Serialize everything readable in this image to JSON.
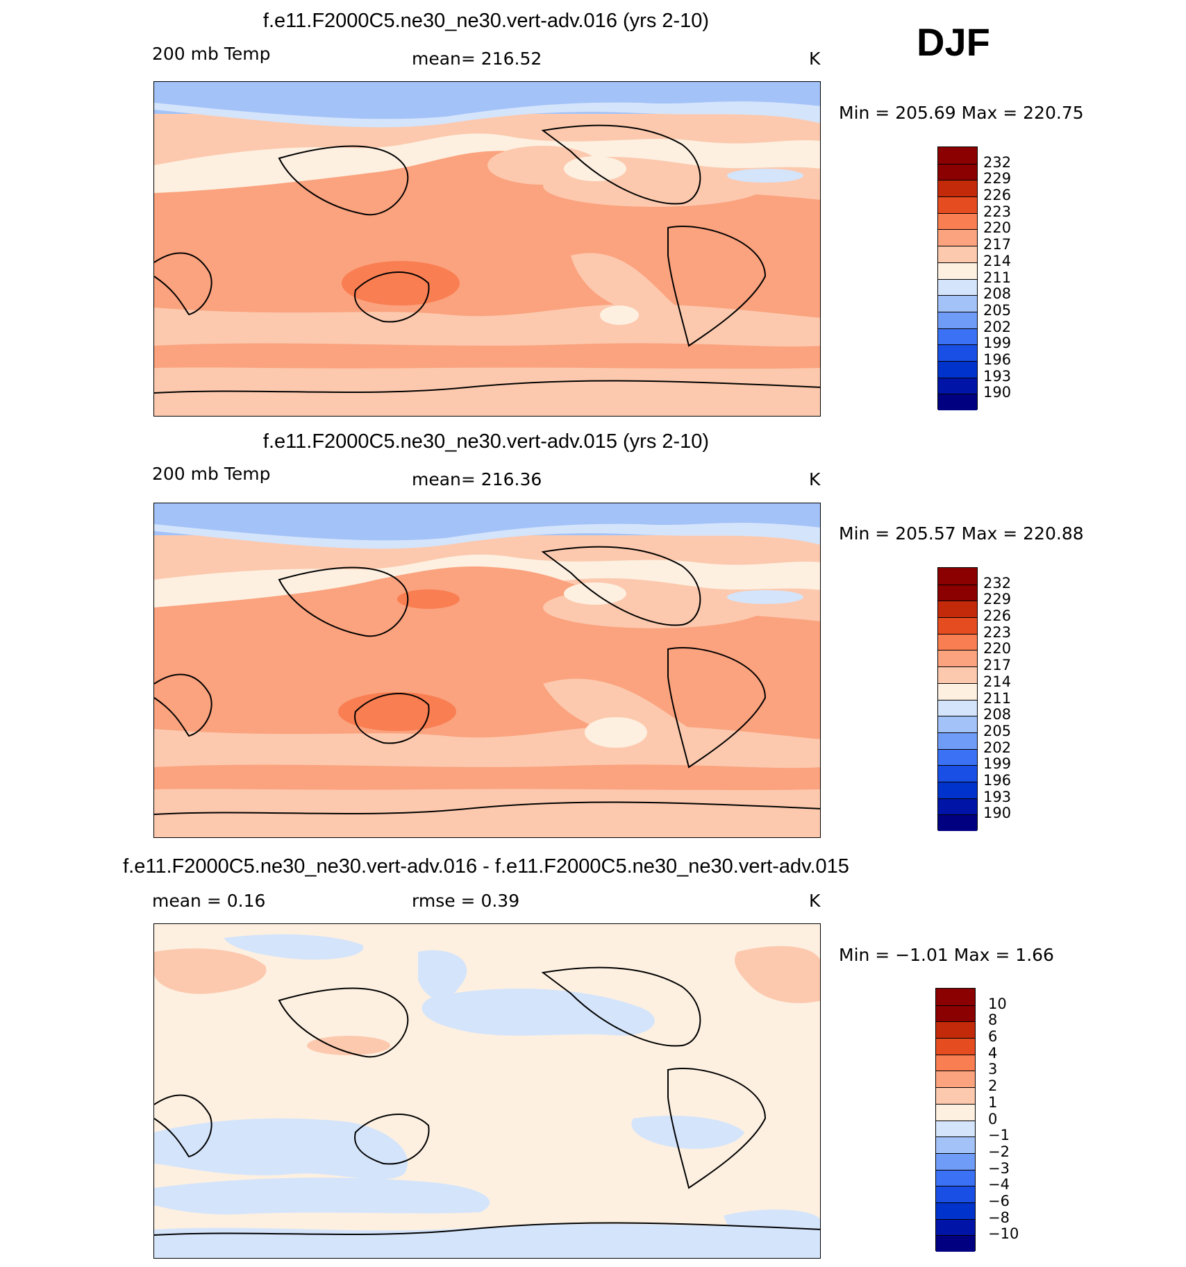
{
  "season": "DJF",
  "colors": {
    "abs": [
      "#000080",
      "#0014a8",
      "#0033cc",
      "#1a4fe6",
      "#3b72f5",
      "#6f9cf7",
      "#a3c2f8",
      "#d4e4fb",
      "#fdf0e1",
      "#fcc9ae",
      "#fba27e",
      "#f97e52",
      "#e54c20",
      "#c22a0a",
      "#8b0000"
    ],
    "diff": [
      "#000080",
      "#0014a8",
      "#0033cc",
      "#1a4fe6",
      "#3b72f5",
      "#6f9cf7",
      "#a3c2f8",
      "#d4e4fb",
      "#fdf0e1",
      "#fcc9ae",
      "#fba27e",
      "#f97e52",
      "#e54c20",
      "#c22a0a",
      "#8b0000"
    ]
  },
  "panels": [
    {
      "title": "f.e11.F2000C5.ne30_ne30.vert-adv.016 (yrs 2-10)",
      "left_label": "200 mb Temp",
      "center_label": "mean=  216.52",
      "units": "K",
      "minmax": "Min  =  205.69  Max  =  220.75"
    },
    {
      "title": "f.e11.F2000C5.ne30_ne30.vert-adv.015 (yrs 2-10)",
      "left_label": "200 mb Temp",
      "center_label": "mean=  216.36",
      "units": "K",
      "minmax": "Min  =  205.57  Max  =  220.88"
    },
    {
      "title": "f.e11.F2000C5.ne30_ne30.vert-adv.016 - f.e11.F2000C5.ne30_ne30.vert-adv.015",
      "left_label": "mean =     0.16",
      "center_label": "rmse =     0.39",
      "units": "K",
      "minmax": "Min  =    −1.01  Max  =     1.66"
    }
  ],
  "chart_data": [
    {
      "type": "heatmap",
      "title": "f.e11.F2000C5.ne30_ne30.vert-adv.016 (yrs 2-10)",
      "variable": "200 mb Temp",
      "units": "K",
      "mean": 216.52,
      "min": 205.69,
      "max": 220.75,
      "contour_levels": [
        190,
        193,
        196,
        199,
        202,
        205,
        208,
        211,
        214,
        217,
        220,
        223,
        226,
        229,
        232
      ],
      "colorbar_labels": [
        "232",
        "229",
        "226",
        "223",
        "220",
        "217",
        "214",
        "211",
        "208",
        "205",
        "202",
        "199",
        "196",
        "193",
        "190"
      ]
    },
    {
      "type": "heatmap",
      "title": "f.e11.F2000C5.ne30_ne30.vert-adv.015 (yrs 2-10)",
      "variable": "200 mb Temp",
      "units": "K",
      "mean": 216.36,
      "min": 205.57,
      "max": 220.88,
      "contour_levels": [
        190,
        193,
        196,
        199,
        202,
        205,
        208,
        211,
        214,
        217,
        220,
        223,
        226,
        229,
        232
      ],
      "colorbar_labels": [
        "232",
        "229",
        "226",
        "223",
        "220",
        "217",
        "214",
        "211",
        "208",
        "205",
        "202",
        "199",
        "196",
        "193",
        "190"
      ]
    },
    {
      "type": "heatmap",
      "title": "f.e11.F2000C5.ne30_ne30.vert-adv.016 - f.e11.F2000C5.ne30_ne30.vert-adv.015",
      "units": "K",
      "mean": 0.16,
      "rmse": 0.39,
      "min": -1.01,
      "max": 1.66,
      "contour_levels": [
        -10,
        -8,
        -6,
        -4,
        -3,
        -2,
        -1,
        0,
        1,
        2,
        3,
        4,
        6,
        8,
        10
      ],
      "colorbar_labels": [
        "10",
        "8",
        "6",
        "4",
        "3",
        "2",
        "1",
        "0",
        "−1",
        "−2",
        "−3",
        "−4",
        "−6",
        "−8",
        "−10"
      ]
    }
  ]
}
